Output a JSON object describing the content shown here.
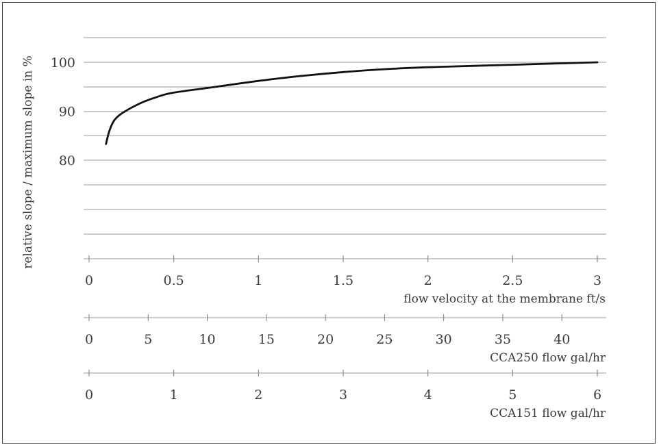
{
  "chart_data": {
    "type": "line",
    "ylabel": "relative slope / maximum slope in %",
    "y_ticks": [
      "80",
      "90",
      "100"
    ],
    "grid": "horizontal",
    "series": [
      {
        "x": [
          0.1,
          0.12,
          0.15,
          0.2,
          0.3,
          0.4,
          0.5,
          0.75,
          1.0,
          1.25,
          1.5,
          1.75,
          2.0,
          2.5,
          3.0
        ],
        "y": [
          83.3,
          86.0,
          88.2,
          89.7,
          91.6,
          92.9,
          93.8,
          95.0,
          96.2,
          97.2,
          98.0,
          98.6,
          99.0,
          99.5,
          100.0
        ]
      }
    ],
    "axes": [
      {
        "label": "flow velocity at the membrane ft/s",
        "min": 0,
        "max": 3,
        "ticks": [
          "0",
          "0.5",
          "1",
          "1.5",
          "2",
          "2.5",
          "3"
        ]
      },
      {
        "label": "CCA250 flow gal/hr",
        "min": 0,
        "max": 43,
        "ticks": [
          "0",
          "5",
          "10",
          "15",
          "20",
          "25",
          "30",
          "35",
          "40"
        ]
      },
      {
        "label": "CCA151 flow gal/hr",
        "min": 0,
        "max": 6,
        "ticks": [
          "0",
          "1",
          "2",
          "3",
          "4",
          "5",
          "6"
        ]
      }
    ]
  }
}
